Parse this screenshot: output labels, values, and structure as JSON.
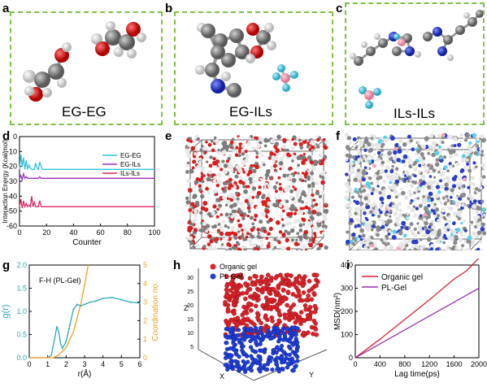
{
  "panels": {
    "a": {
      "letter": "a",
      "caption": "EG-EG"
    },
    "b": {
      "letter": "b",
      "caption": "EG-ILs"
    },
    "c": {
      "letter": "c",
      "caption": "ILs-ILs"
    },
    "d": {
      "letter": "d"
    },
    "e": {
      "letter": "e"
    },
    "f": {
      "letter": "f"
    },
    "g": {
      "letter": "g",
      "annotation": "F-H (PL-Gel)"
    },
    "h": {
      "letter": "h"
    },
    "i": {
      "letter": "i"
    }
  },
  "colors": {
    "box_border": "#7dc242",
    "carbon": "#8a8a8a",
    "oxygen": "#e02020",
    "hydrogen": "#f2f2f2",
    "nitrogen": "#2a3ec8",
    "boron": "#f4a9b8",
    "fluorine": "#5ad2e6",
    "eg_eg": "#2ec4d6",
    "eg_ils": "#9b2fb5",
    "ils_ils": "#e0245e",
    "gr": "#2aa8b8",
    "coord": "#f0a020",
    "organic": "#d8232a",
    "plgel": "#9b2fb5",
    "blue_points": "#1f3fd6"
  },
  "chart_data": [
    {
      "panel": "d",
      "type": "line",
      "xlabel": "Counter",
      "ylabel": "Interaction Energy (Kcal/mol)",
      "xlim": [
        0,
        100
      ],
      "ylim": [
        -60,
        0
      ],
      "xticks": [
        0,
        20,
        40,
        60,
        80,
        100
      ],
      "yticks": [
        0,
        -10,
        -20,
        -30,
        -40,
        -50,
        -60
      ],
      "legend_position": "top-right",
      "series": [
        {
          "name": "EG-EG",
          "color": "#2ec4d6",
          "x": [
            0,
            1,
            2,
            3,
            4,
            5,
            6,
            7,
            8,
            9,
            10,
            11,
            12,
            13,
            14,
            15,
            16,
            17,
            18,
            19,
            20,
            100
          ],
          "y": [
            -22,
            -12,
            -20,
            -14,
            -22,
            -16,
            -22,
            -19,
            -21,
            -22,
            -22,
            -22,
            -18,
            -21,
            -22,
            -17,
            -20,
            -22,
            -22,
            -22,
            -22,
            -22
          ]
        },
        {
          "name": "EG-ILs",
          "color": "#9b2fb5",
          "x": [
            0,
            1,
            2,
            3,
            4,
            5,
            6,
            7,
            8,
            9,
            10,
            11,
            12,
            13,
            14,
            15,
            16,
            17,
            18,
            19,
            20,
            100
          ],
          "y": [
            -28,
            -26,
            -29,
            -25,
            -28,
            -27,
            -28,
            -28,
            -28,
            -28,
            -28,
            -28,
            -28,
            -28,
            -28,
            -27,
            -28,
            -28,
            -28,
            -28,
            -28,
            -28
          ]
        },
        {
          "name": "ILs-ILs",
          "color": "#e0245e",
          "x": [
            0,
            1,
            2,
            3,
            4,
            5,
            6,
            7,
            8,
            9,
            10,
            11,
            12,
            13,
            14,
            15,
            16,
            17,
            18,
            19,
            20,
            100
          ],
          "y": [
            -47,
            -42,
            -48,
            -43,
            -47,
            -45,
            -47,
            -46,
            -47,
            -40,
            -47,
            -44,
            -47,
            -47,
            -47,
            -43,
            -47,
            -47,
            -47,
            -47,
            -47,
            -47
          ]
        }
      ]
    },
    {
      "panel": "g",
      "type": "line",
      "xlabel": "r(Å)",
      "ylabel": "g(r)",
      "y2label": "Coordination no.",
      "xlim": [
        0,
        6
      ],
      "ylim": [
        0,
        2.0
      ],
      "y2lim": [
        0,
        5
      ],
      "xticks": [
        0,
        1,
        2,
        3,
        4,
        5,
        6
      ],
      "yticks": [
        0.0,
        0.5,
        1.0,
        1.5,
        2.0
      ],
      "y2ticks": [
        0,
        1,
        2,
        3,
        4,
        5
      ],
      "series": [
        {
          "name": "g(r)",
          "axis": "left",
          "color": "#2aa8b8",
          "x": [
            0,
            1.0,
            1.2,
            1.35,
            1.5,
            1.6,
            1.7,
            1.8,
            2.0,
            2.2,
            2.4,
            2.6,
            2.8,
            3.0,
            3.3,
            3.6,
            4.0,
            4.5,
            5.0,
            5.5,
            6.0
          ],
          "y": [
            0,
            0,
            0.05,
            0.35,
            0.68,
            0.55,
            0.3,
            0.2,
            0.35,
            0.7,
            1.05,
            1.15,
            1.12,
            1.15,
            1.2,
            1.22,
            1.28,
            1.3,
            1.25,
            1.2,
            1.18
          ]
        },
        {
          "name": "Coordination no.",
          "axis": "right",
          "color": "#f0a020",
          "x": [
            0,
            1.3,
            1.6,
            2.0,
            2.4,
            2.8,
            3.2
          ],
          "y": [
            0,
            0,
            0.15,
            0.55,
            1.4,
            2.9,
            5.0
          ]
        }
      ]
    },
    {
      "panel": "h",
      "type": "scatter",
      "xlabel": "X",
      "ylabel": "Y",
      "zlabel": "Z",
      "zticks": [
        5,
        10,
        15,
        20,
        25,
        30
      ],
      "legend_position": "top-left",
      "series": [
        {
          "name": "Organic gel",
          "color": "#d8232a"
        },
        {
          "name": "PL-Gel",
          "color": "#1f3fd6"
        }
      ]
    },
    {
      "panel": "i",
      "type": "line",
      "xlabel": "Lag time(ps)",
      "ylabel": "MSD(nm²)",
      "xlim": [
        0,
        2000
      ],
      "ylim": [
        0,
        400
      ],
      "xticks": [
        0,
        400,
        800,
        1200,
        1600,
        2000
      ],
      "yticks": [
        0,
        100,
        200,
        300,
        400
      ],
      "legend_position": "top-left",
      "series": [
        {
          "name": "Organic gel",
          "color": "#d8232a",
          "x": [
            0,
            400,
            800,
            1200,
            1600,
            1800,
            2000
          ],
          "y": [
            0,
            80,
            165,
            250,
            340,
            375,
            430
          ]
        },
        {
          "name": "PL-Gel",
          "color": "#9b2fb5",
          "x": [
            0,
            400,
            800,
            1200,
            1600,
            1800,
            2000
          ],
          "y": [
            0,
            60,
            120,
            180,
            240,
            270,
            300
          ]
        }
      ]
    }
  ]
}
